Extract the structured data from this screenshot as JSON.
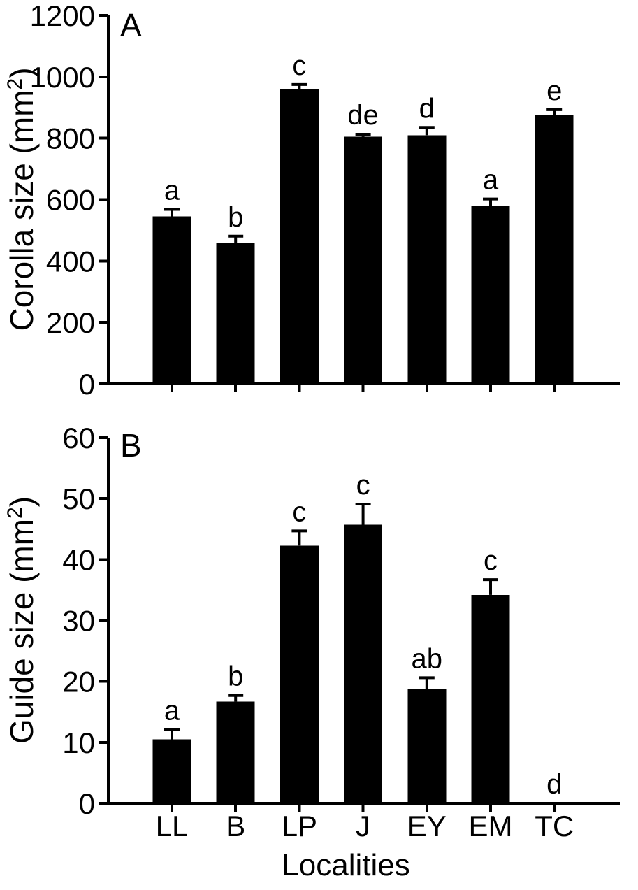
{
  "colors": {
    "foreground": "#000000",
    "background": "#ffffff",
    "bar": "#000000"
  },
  "x_axis": {
    "label": "Localities",
    "categories": [
      "LL",
      "B",
      "LP",
      "J",
      "EY",
      "EM",
      "TC"
    ]
  },
  "chart_data": [
    {
      "type": "bar",
      "panel_label": "A",
      "ylabel": "Corolla size (mm²)",
      "ylabel_parts": {
        "pre": "Corolla size (mm",
        "sup": "2",
        "post": ")"
      },
      "xlabel": "Localities",
      "categories": [
        "LL",
        "B",
        "LP",
        "J",
        "EY",
        "EM",
        "TC"
      ],
      "values": [
        545,
        460,
        960,
        805,
        810,
        580,
        875
      ],
      "errors": [
        23,
        21,
        15,
        8,
        25,
        22,
        18
      ],
      "sig_letters": [
        "a",
        "b",
        "c",
        "de",
        "d",
        "a",
        "e"
      ],
      "ylim": [
        0,
        1200
      ],
      "yticks": [
        0,
        200,
        400,
        600,
        800,
        1000,
        1200
      ],
      "grid": false,
      "legend": false,
      "show_x_tick_labels": false
    },
    {
      "type": "bar",
      "panel_label": "B",
      "ylabel": "Guide size (mm²)",
      "ylabel_parts": {
        "pre": "Guide size (mm",
        "sup": "2",
        "post": ")"
      },
      "xlabel": "Localities",
      "categories": [
        "LL",
        "B",
        "LP",
        "J",
        "EY",
        "EM",
        "TC"
      ],
      "values": [
        10.5,
        16.7,
        42.3,
        45.7,
        18.7,
        34.2,
        0
      ],
      "errors": [
        1.6,
        1.0,
        2.4,
        3.4,
        1.9,
        2.5,
        0
      ],
      "sig_letters": [
        "a",
        "b",
        "c",
        "c",
        "ab",
        "c",
        "d"
      ],
      "ylim": [
        0,
        60
      ],
      "yticks": [
        0,
        10,
        20,
        30,
        40,
        50,
        60
      ],
      "grid": false,
      "legend": false,
      "show_x_tick_labels": true
    }
  ]
}
